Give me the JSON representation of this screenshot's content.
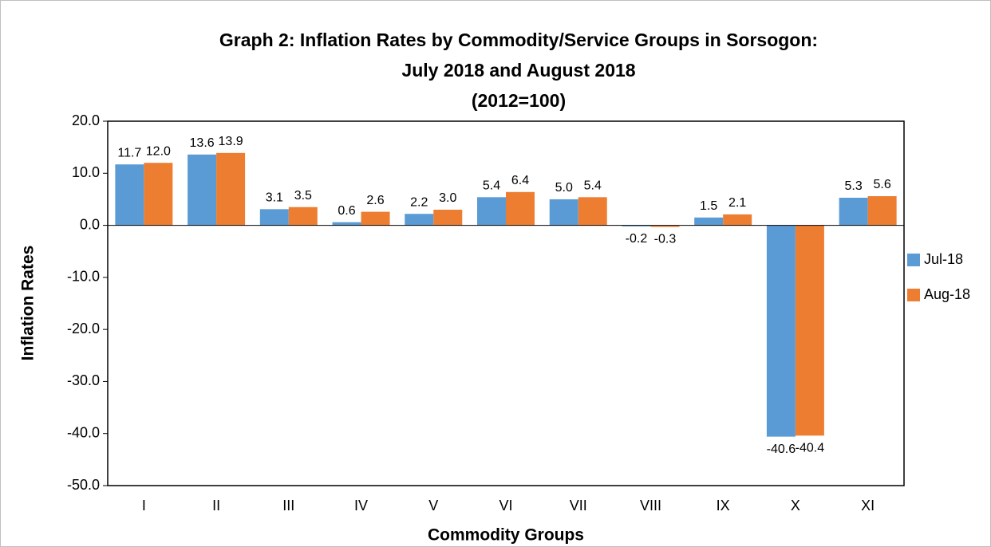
{
  "chart_data": {
    "type": "bar",
    "title": [
      "Graph 2: Inflation Rates by Commodity/Service Groups in Sorsogon:",
      "July 2018 and August 2018",
      "(2012=100)"
    ],
    "x_label": "Commodity Groups",
    "y_label": "Inflation Rates",
    "categories": [
      "I",
      "II",
      "III",
      "IV",
      "V",
      "VI",
      "VII",
      "VIII",
      "IX",
      "X",
      "XI"
    ],
    "series": [
      {
        "name": "Jul-18",
        "color": "#5b9bd5",
        "values": [
          11.7,
          13.6,
          3.1,
          0.6,
          2.2,
          5.4,
          5.0,
          -0.2,
          1.5,
          -40.6,
          5.3
        ],
        "value_labels": [
          "11.7",
          "13.6",
          "3.1",
          "0.6",
          "2.2",
          "5.4",
          "5.0",
          "-0.2",
          "1.5",
          "-40.6",
          "5.3"
        ]
      },
      {
        "name": "Aug-18",
        "color": "#ed7d31",
        "values": [
          12.0,
          13.9,
          3.5,
          2.6,
          3.0,
          6.4,
          5.4,
          -0.3,
          2.1,
          -40.4,
          5.6
        ],
        "value_labels": [
          "12.0",
          "13.9",
          "3.5",
          "2.6",
          "3.0",
          "6.4",
          "5.4",
          "-0.3",
          "2.1",
          "-40.4",
          "5.6"
        ]
      }
    ],
    "ylim": [
      -50,
      20
    ],
    "yticks": [
      {
        "value": -50,
        "label": "-50.0"
      },
      {
        "value": -40,
        "label": "-40.0"
      },
      {
        "value": -30,
        "label": "-30.0"
      },
      {
        "value": -20,
        "label": "-20.0"
      },
      {
        "value": -10,
        "label": "-10.0"
      },
      {
        "value": 0,
        "label": "0.0"
      },
      {
        "value": 10,
        "label": "10.0"
      },
      {
        "value": 20,
        "label": "20.0"
      }
    ],
    "legend": "right"
  }
}
